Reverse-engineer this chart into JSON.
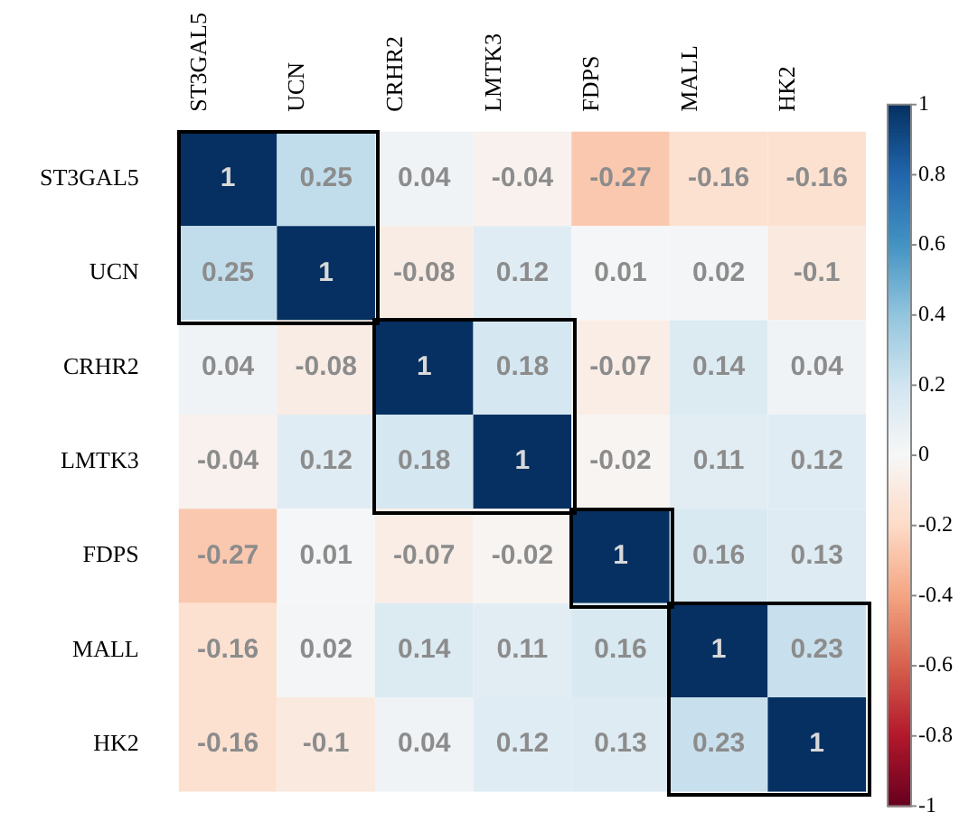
{
  "chart_data": {
    "type": "heatmap",
    "categories": [
      "ST3GAL5",
      "UCN",
      "CRHR2",
      "LMTK3",
      "FDPS",
      "MALL",
      "HK2"
    ],
    "y_categories": [
      "ST3GAL5",
      "UCN",
      "CRHR2",
      "LMTK3",
      "FDPS",
      "MALL",
      "HK2"
    ],
    "cells": [
      [
        1,
        0.25,
        0.04,
        -0.04,
        -0.27,
        -0.16,
        -0.16
      ],
      [
        0.25,
        1,
        -0.08,
        0.12,
        0.01,
        0.02,
        -0.1
      ],
      [
        0.04,
        -0.08,
        1,
        0.18,
        -0.07,
        0.14,
        0.04
      ],
      [
        -0.04,
        0.12,
        0.18,
        1,
        -0.02,
        0.11,
        0.12
      ],
      [
        -0.27,
        0.01,
        -0.07,
        -0.02,
        1,
        0.16,
        0.13
      ],
      [
        -0.16,
        0.02,
        0.14,
        0.11,
        0.16,
        1,
        0.23
      ],
      [
        -0.16,
        -0.1,
        0.04,
        0.12,
        0.13,
        0.23,
        1
      ]
    ],
    "clim": [
      -1,
      1
    ],
    "cticks": [
      1,
      0.8,
      0.6,
      0.4,
      0.2,
      0,
      -0.2,
      -0.4,
      -0.6,
      -0.8,
      -1
    ],
    "data_labels": true
  }
}
